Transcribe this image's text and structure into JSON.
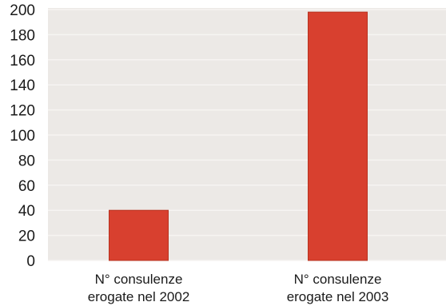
{
  "chart_data": {
    "type": "bar",
    "categories": [
      [
        "N° consulenze",
        "erogate nel 2002"
      ],
      [
        "N° consulenze",
        "erogate nel 2003"
      ]
    ],
    "values": [
      40,
      198
    ],
    "ylim": [
      0,
      200
    ],
    "yticks": [
      0,
      20,
      40,
      60,
      80,
      100,
      120,
      140,
      160,
      180,
      200
    ],
    "grid": true,
    "colors": {
      "bar": "#d8402f",
      "bar_edge": "#b8321f",
      "plot_background": "#ece9e6",
      "grid": "#f6f4f2"
    }
  }
}
